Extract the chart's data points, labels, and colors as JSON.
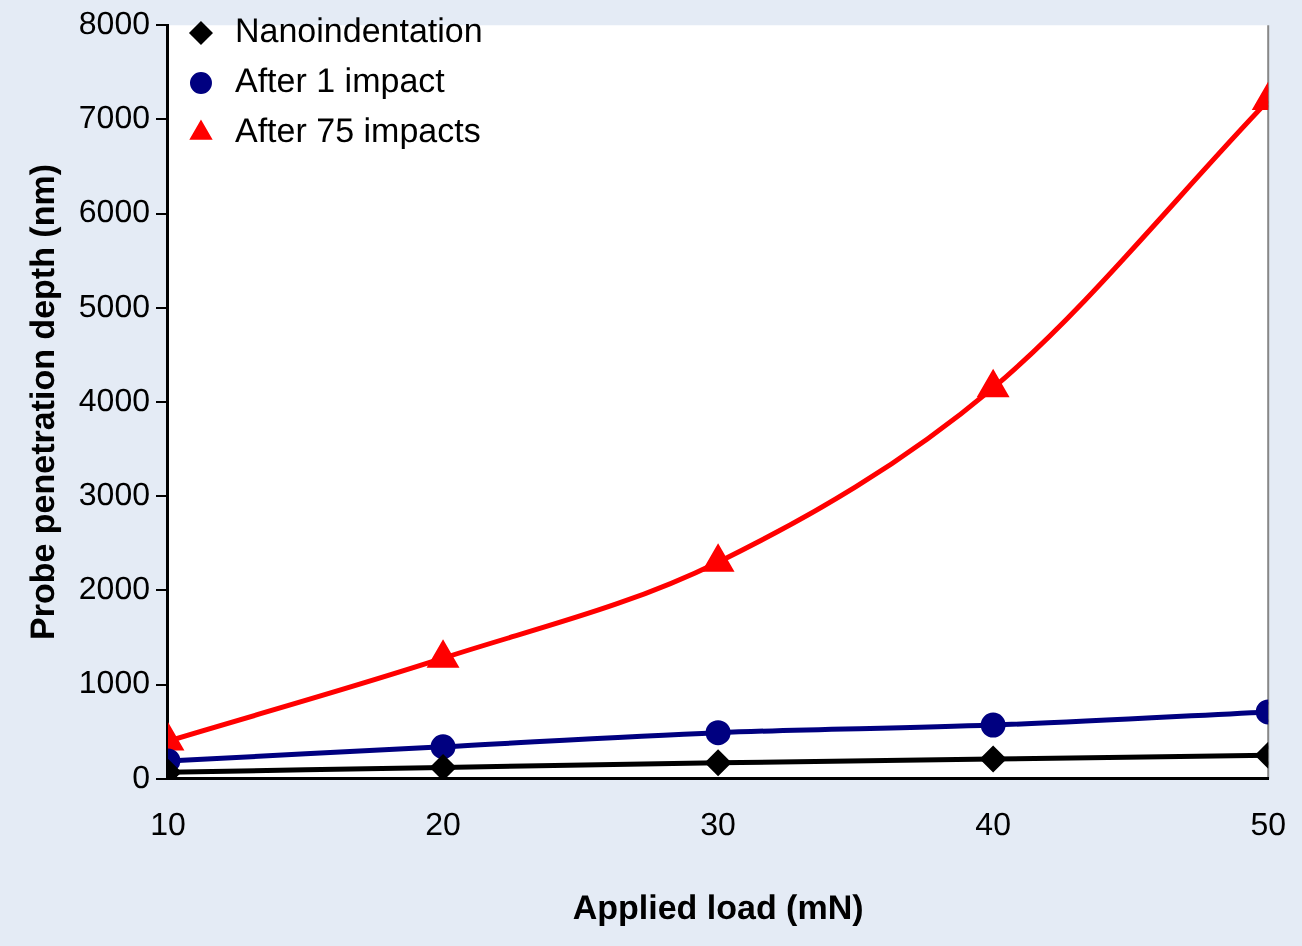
{
  "chart_data": {
    "type": "line",
    "xlabel": "Applied load (mN)",
    "ylabel": "Probe penetration depth (nm)",
    "x": [
      10,
      20,
      30,
      40,
      50
    ],
    "xlim": [
      10,
      50
    ],
    "xticks": [
      10,
      20,
      30,
      40,
      50
    ],
    "ylim": [
      0,
      8000
    ],
    "yticks": [
      0,
      1000,
      2000,
      3000,
      4000,
      5000,
      6000,
      7000,
      8000
    ],
    "grid": false,
    "legend": "top left",
    "series": [
      {
        "name": "Nanoindentation",
        "color": "#000000",
        "marker": "diamond",
        "values": [
          70,
          120,
          170,
          210,
          250
        ]
      },
      {
        "name": "After 1 impact",
        "color": "#000080",
        "marker": "circle",
        "values": [
          190,
          340,
          490,
          570,
          710
        ]
      },
      {
        "name": "After 75 impacts",
        "color": "#ff0000",
        "marker": "triangle",
        "values": [
          400,
          1280,
          2300,
          4150,
          7200
        ]
      }
    ]
  }
}
